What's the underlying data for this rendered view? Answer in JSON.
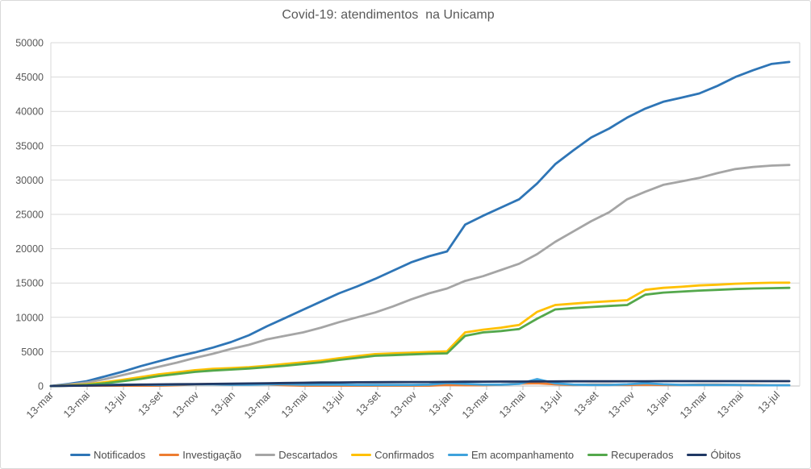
{
  "title": "Covid-19: atendimentos  na Unicamp",
  "chart_data": {
    "type": "line",
    "title": "Covid-19: atendimentos  na Unicamp",
    "x_start": "13-mar-2020",
    "x_end": "ago-2023",
    "x_interval_months_per_point": 1,
    "x_tick_labels": [
      "13-mar",
      "13-mai",
      "13-jul",
      "13-set",
      "13-nov",
      "13-jan",
      "13-mar",
      "13-mai",
      "13-jul",
      "13-set",
      "13-nov",
      "13-jan",
      "13-mar",
      "13-mai",
      "13-jul",
      "13-set",
      "13-nov",
      "13-jan",
      "13-mar",
      "13-mai",
      "13-jul"
    ],
    "x_tick_interval_months": 2,
    "y_axis": {
      "min": 0,
      "max": 50000,
      "step": 5000,
      "tick_labels": [
        "0",
        "5000",
        "10000",
        "15000",
        "20000",
        "25000",
        "30000",
        "35000",
        "40000",
        "45000",
        "50000"
      ]
    },
    "grid": true,
    "legend_position": "bottom",
    "colors": {
      "gridline": "#d9d9d9",
      "axis_tick": "#bfbfbf",
      "axis_text": "#595959",
      "title_text": "#595959",
      "legend_text": "#4d4d4d"
    },
    "series": [
      {
        "name": "Notificados",
        "color": "#2e75b6",
        "values": [
          0,
          300,
          700,
          1400,
          2100,
          2900,
          3600,
          4300,
          4900,
          5600,
          6400,
          7400,
          8700,
          9900,
          11100,
          12300,
          13500,
          14500,
          15600,
          16800,
          18000,
          18900,
          19600,
          23500,
          24800,
          26000,
          27200,
          29500,
          32300,
          34300,
          36200,
          37500,
          39100,
          40400,
          41400,
          42000,
          42600,
          43700,
          45000,
          46000,
          46900,
          47200
        ]
      },
      {
        "name": "Investigação",
        "color": "#ed7d31",
        "values": [
          0,
          50,
          50,
          50,
          50,
          50,
          50,
          100,
          250,
          300,
          300,
          300,
          250,
          100,
          50,
          50,
          50,
          50,
          50,
          50,
          50,
          50,
          150,
          100,
          100,
          200,
          350,
          400,
          250,
          150,
          200,
          200,
          150,
          200,
          150,
          150,
          200,
          200,
          150,
          150,
          100,
          100
        ]
      },
      {
        "name": "Descartados",
        "color": "#a5a5a5",
        "values": [
          0,
          200,
          500,
          1000,
          1600,
          2200,
          2800,
          3400,
          4100,
          4700,
          5400,
          6000,
          6800,
          7300,
          7800,
          8500,
          9300,
          10000,
          10700,
          11600,
          12600,
          13500,
          14200,
          15300,
          16000,
          16900,
          17800,
          19200,
          21000,
          22500,
          24000,
          25300,
          27200,
          28300,
          29300,
          29800,
          30300,
          31000,
          31600,
          31900,
          32100,
          32200
        ]
      },
      {
        "name": "Confirmados",
        "color": "#ffc000",
        "values": [
          0,
          100,
          250,
          550,
          900,
          1300,
          1700,
          2000,
          2300,
          2500,
          2600,
          2750,
          2950,
          3200,
          3450,
          3700,
          4050,
          4350,
          4650,
          4750,
          4850,
          4950,
          5050,
          7800,
          8200,
          8500,
          8900,
          10800,
          11800,
          12000,
          12200,
          12350,
          12500,
          14000,
          14300,
          14450,
          14650,
          14750,
          14900,
          14980,
          15030,
          15050
        ]
      },
      {
        "name": "Em acompanhamento",
        "color": "#3fa2dc",
        "values": [
          0,
          50,
          100,
          150,
          200,
          200,
          150,
          200,
          250,
          250,
          200,
          200,
          250,
          250,
          200,
          200,
          200,
          150,
          150,
          150,
          150,
          200,
          450,
          300,
          200,
          200,
          300,
          1000,
          400,
          200,
          150,
          150,
          250,
          400,
          250,
          150,
          150,
          150,
          150,
          100,
          100,
          100
        ]
      },
      {
        "name": "Recuperados",
        "color": "#54a84c",
        "values": [
          0,
          50,
          150,
          400,
          700,
          1050,
          1450,
          1750,
          2050,
          2250,
          2400,
          2550,
          2750,
          2950,
          3200,
          3450,
          3800,
          4100,
          4400,
          4500,
          4600,
          4700,
          4750,
          7300,
          7800,
          8000,
          8300,
          9800,
          11150,
          11350,
          11500,
          11650,
          11800,
          13300,
          13600,
          13750,
          13900,
          14000,
          14120,
          14200,
          14250,
          14300
        ]
      },
      {
        "name": "Óbitos",
        "color": "#203864",
        "values": [
          0,
          30,
          60,
          100,
          150,
          200,
          230,
          260,
          280,
          300,
          330,
          360,
          400,
          440,
          470,
          500,
          520,
          540,
          550,
          560,
          570,
          580,
          600,
          620,
          630,
          640,
          650,
          660,
          670,
          675,
          680,
          685,
          690,
          695,
          700,
          700,
          700,
          700,
          700,
          700,
          700,
          700
        ]
      }
    ]
  }
}
